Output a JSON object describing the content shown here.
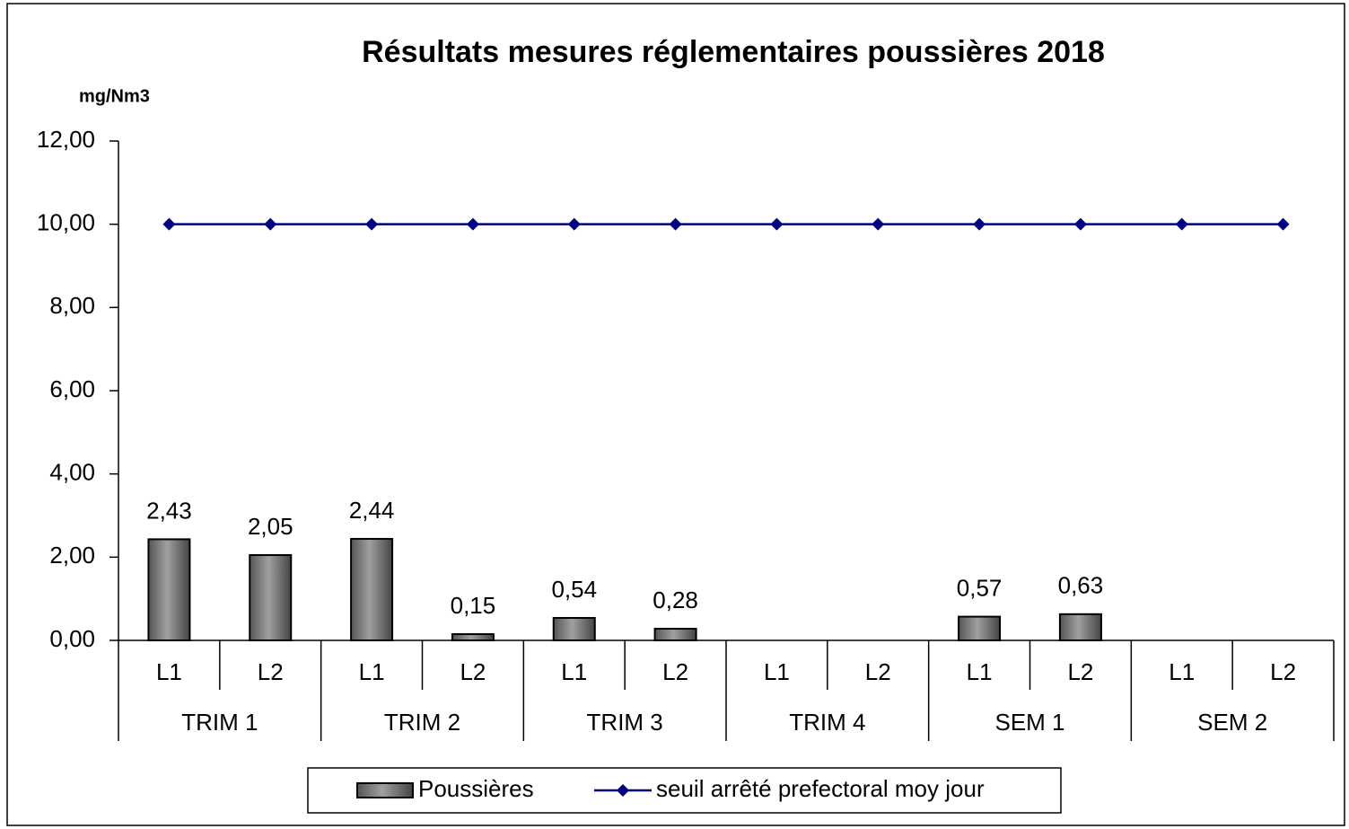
{
  "chart_data": {
    "type": "bar-line",
    "title": "Résultats mesures réglementaires poussières 2018",
    "y_axis_label": "mg/Nm3",
    "categories": [
      "L1",
      "L2",
      "L1",
      "L2",
      "L1",
      "L2",
      "L1",
      "L2",
      "L1",
      "L2",
      "L1",
      "L2"
    ],
    "category_groups": [
      "TRIM 1",
      "TRIM 2",
      "TRIM 3",
      "TRIM 4",
      "SEM 1",
      "SEM 2"
    ],
    "series": [
      {
        "name": "Poussières",
        "type": "bar",
        "color": "#a0a0a0",
        "values": [
          2.43,
          2.05,
          2.44,
          0.15,
          0.54,
          0.28,
          null,
          null,
          0.57,
          0.63,
          null,
          null
        ],
        "value_labels": [
          "2,43",
          "2,05",
          "2,44",
          "0,15",
          "0,54",
          "0,28",
          null,
          null,
          "0,57",
          "0,63",
          null,
          null
        ]
      },
      {
        "name": "seuil arrêté prefectoral moy jour",
        "type": "line",
        "color": "#000080",
        "values": [
          10,
          10,
          10,
          10,
          10,
          10,
          10,
          10,
          10,
          10,
          10,
          10
        ]
      }
    ],
    "ylim": [
      0,
      12
    ],
    "yticks": [
      {
        "value": 0,
        "label": "0,00"
      },
      {
        "value": 2,
        "label": "2,00"
      },
      {
        "value": 4,
        "label": "4,00"
      },
      {
        "value": 6,
        "label": "6,00"
      },
      {
        "value": 8,
        "label": "8,00"
      },
      {
        "value": 10,
        "label": "10,00"
      },
      {
        "value": 12,
        "label": "12,00"
      }
    ],
    "legend": "bottom"
  }
}
